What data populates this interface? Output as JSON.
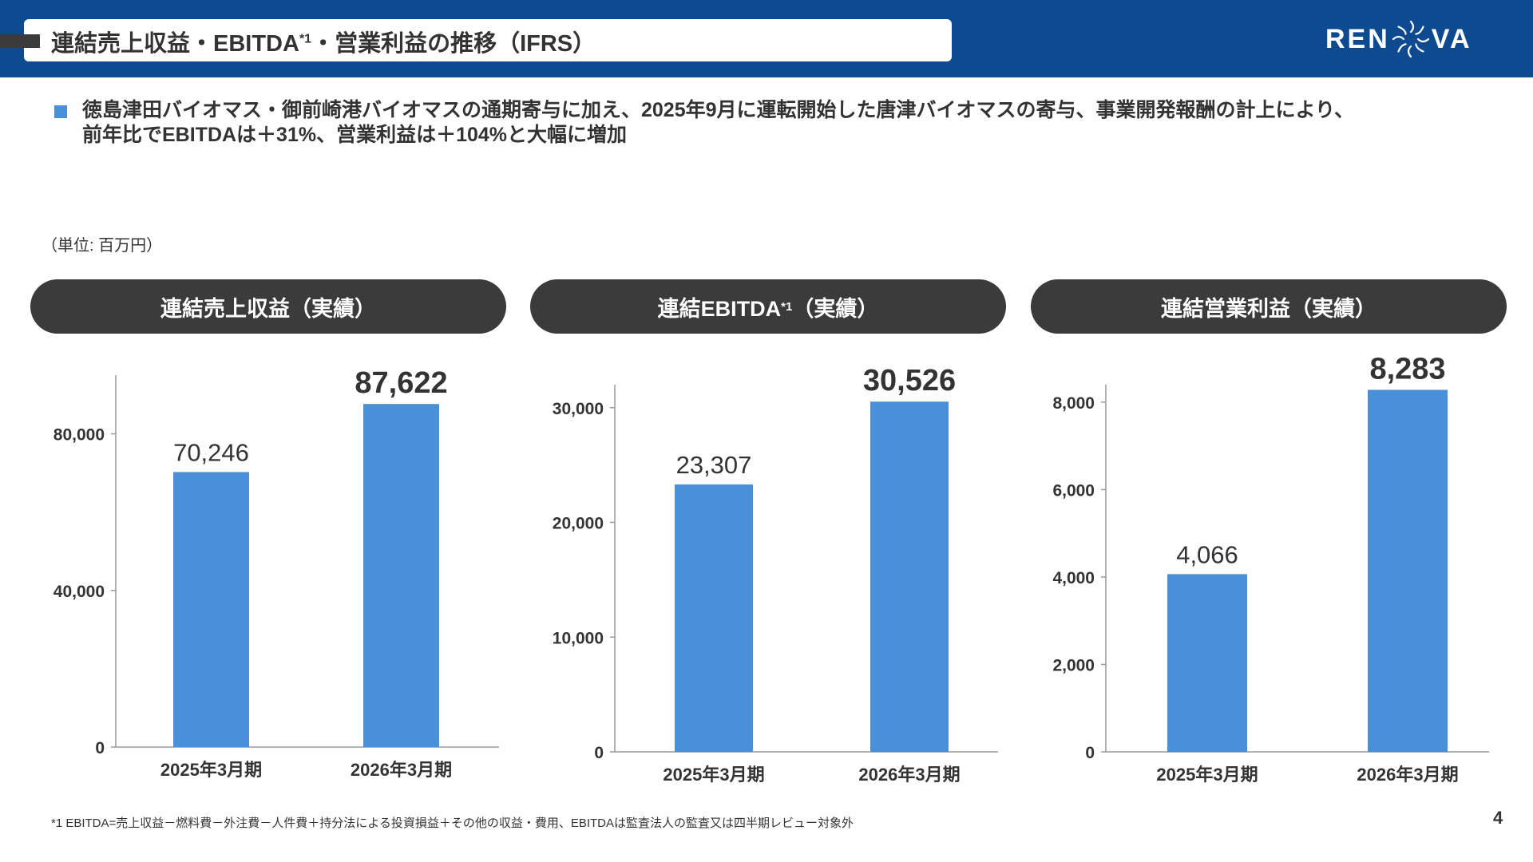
{
  "header": {
    "title_main": "連結売上収益・EBITDA",
    "title_sup": "*1",
    "title_rest": "・営業利益の推移（IFRS）",
    "logo_left": "REN",
    "logo_right": "VA"
  },
  "bullet": {
    "line1": "徳島津田バイオマス・御前崎港バイオマスの通期寄与に加え、2025年9月に運転開始した唐津バイオマスの寄与、事業開発報酬の計上により、",
    "line2": "前年比でEBITDAは＋31%、営業利益は＋104%と大幅に増加"
  },
  "unit_label": "（単位: 百万円）",
  "panels": [
    {
      "title": "連結売上収益（実績）"
    },
    {
      "title_main": "連結EBITDA",
      "title_sup": "*1",
      "title_rest": "（実績）"
    },
    {
      "title": "連結営業利益（実績）"
    }
  ],
  "chart_data": [
    {
      "type": "bar",
      "categories": [
        "2025年3月期",
        "2026年3月期"
      ],
      "values": [
        70246,
        87622
      ],
      "value_labels": [
        "70,246",
        "87,622"
      ],
      "ylim": [
        0,
        95000
      ],
      "yticks": [
        0,
        40000,
        80000
      ],
      "ytick_labels": [
        "0",
        "40,000",
        "80,000"
      ],
      "grid": false,
      "color": "#4a90d9"
    },
    {
      "type": "bar",
      "categories": [
        "2025年3月期",
        "2026年3月期"
      ],
      "values": [
        23307,
        30526
      ],
      "value_labels": [
        "23,307",
        "30,526"
      ],
      "ylim": [
        0,
        32000
      ],
      "yticks": [
        0,
        10000,
        20000,
        30000
      ],
      "ytick_labels": [
        "0",
        "10,000",
        "20,000",
        "30,000"
      ],
      "grid": false,
      "color": "#4a90d9"
    },
    {
      "type": "bar",
      "categories": [
        "2025年3月期",
        "2026年3月期"
      ],
      "values": [
        4066,
        8283
      ],
      "value_labels": [
        "4,066",
        "8,283"
      ],
      "ylim": [
        0,
        8400
      ],
      "yticks": [
        0,
        2000,
        4000,
        6000,
        8000
      ],
      "ytick_labels": [
        "0",
        "2,000",
        "4,000",
        "6,000",
        "8,000"
      ],
      "grid": false,
      "color": "#4a90d9"
    }
  ],
  "footnote": "*1 EBITDA=売上収益－燃料費－外注費－人件費＋持分法による投資損益＋その他の収益・費用、EBITDAは監査法人の監査又は四半期レビュー対象外",
  "page_number": "4"
}
